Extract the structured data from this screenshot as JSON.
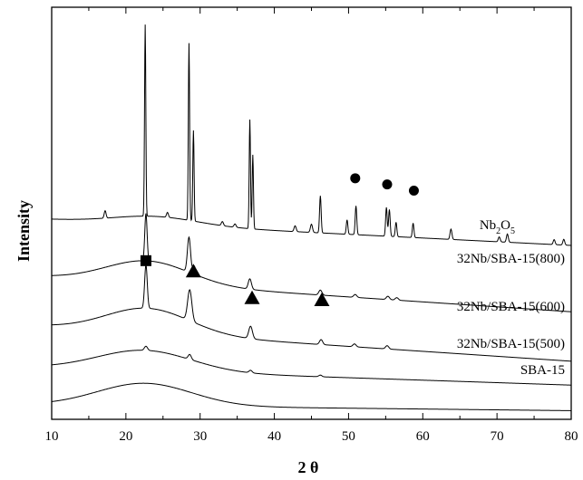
{
  "chart_data": {
    "type": "line",
    "title": "",
    "xlabel": "2 θ",
    "ylabel": "Intensity",
    "xlim": [
      10,
      80
    ],
    "x_ticks": [
      "10",
      "20",
      "30",
      "40",
      "50",
      "60",
      "70",
      "80"
    ],
    "y_ticks": [],
    "grid": false,
    "legend": "none (series labelled inline)",
    "series": [
      {
        "name": "SBA-15",
        "baseline": 0.035,
        "slope": -0.0002,
        "background": {
          "amp": 0.055,
          "center": 22.5,
          "width": 9
        },
        "peaks": []
      },
      {
        "name": "32Nb/SBA-15(500)",
        "baseline": 0.125,
        "slope": -0.0006,
        "background": {
          "amp": 0.05,
          "center": 22.5,
          "width": 9
        },
        "peaks": [
          [
            22.7,
            0.01,
            0.3
          ],
          [
            28.6,
            0.012,
            0.3
          ],
          [
            36.8,
            0.006,
            0.3
          ],
          [
            46.2,
            0.004,
            0.3
          ]
        ]
      },
      {
        "name": "32Nb/SBA-15(600)",
        "baseline": 0.225,
        "slope": -0.0012,
        "background": {
          "amp": 0.06,
          "center": 23,
          "width": 8
        },
        "peaks": [
          [
            22.7,
            0.105,
            0.25
          ],
          [
            28.6,
            0.075,
            0.4
          ],
          [
            36.8,
            0.03,
            0.35
          ],
          [
            46.3,
            0.012,
            0.3
          ],
          [
            50.8,
            0.007,
            0.3
          ],
          [
            55.2,
            0.008,
            0.3
          ]
        ]
      },
      {
        "name": "32Nb/SBA-15(800)",
        "baseline": 0.345,
        "slope": -0.0012,
        "background": {
          "amp": 0.055,
          "center": 23,
          "width": 8
        },
        "peaks": [
          [
            22.7,
            0.115,
            0.22
          ],
          [
            28.5,
            0.085,
            0.3
          ],
          [
            29.2,
            0.02,
            0.25
          ],
          [
            36.7,
            0.025,
            0.3
          ],
          [
            46.2,
            0.012,
            0.3
          ],
          [
            50.9,
            0.007,
            0.3
          ],
          [
            55.3,
            0.008,
            0.3
          ],
          [
            56.5,
            0.006,
            0.3
          ]
        ]
      },
      {
        "name": "Nb2O5",
        "name_parts": {
          "base": "Nb",
          "sub1": "2",
          "mid": "O",
          "sub2": "5"
        },
        "baseline": 0.485,
        "slope": -0.0009,
        "background": {
          "amp": 0.02,
          "center": 24,
          "width": 8
        },
        "peaks": [
          [
            17.2,
            0.018,
            0.18
          ],
          [
            22.6,
            0.465,
            0.12
          ],
          [
            25.6,
            0.012,
            0.18
          ],
          [
            28.5,
            0.43,
            0.12
          ],
          [
            29.1,
            0.22,
            0.12
          ],
          [
            33.0,
            0.01,
            0.2
          ],
          [
            34.7,
            0.008,
            0.2
          ],
          [
            36.7,
            0.265,
            0.12
          ],
          [
            37.1,
            0.18,
            0.12
          ],
          [
            42.8,
            0.014,
            0.2
          ],
          [
            45.0,
            0.02,
            0.2
          ],
          [
            46.2,
            0.09,
            0.15
          ],
          [
            49.8,
            0.035,
            0.15
          ],
          [
            51.0,
            0.07,
            0.15
          ],
          [
            55.1,
            0.07,
            0.15
          ],
          [
            55.5,
            0.065,
            0.15
          ],
          [
            56.4,
            0.035,
            0.15
          ],
          [
            58.7,
            0.035,
            0.15
          ],
          [
            63.8,
            0.025,
            0.18
          ],
          [
            70.3,
            0.012,
            0.18
          ],
          [
            71.4,
            0.02,
            0.18
          ],
          [
            77.7,
            0.012,
            0.18
          ],
          [
            79.0,
            0.014,
            0.18
          ]
        ]
      }
    ],
    "markers": [
      {
        "symbol": "square",
        "x": 22.7,
        "y": 0.385
      },
      {
        "symbol": "triangle",
        "x": 29.1,
        "y": 0.36
      },
      {
        "symbol": "triangle",
        "x": 37.0,
        "y": 0.295
      },
      {
        "symbol": "triangle",
        "x": 46.4,
        "y": 0.29
      },
      {
        "symbol": "circle",
        "x": 50.9,
        "y": 0.585
      },
      {
        "symbol": "circle",
        "x": 55.2,
        "y": 0.57
      },
      {
        "symbol": "circle",
        "x": 58.8,
        "y": 0.555
      }
    ]
  }
}
